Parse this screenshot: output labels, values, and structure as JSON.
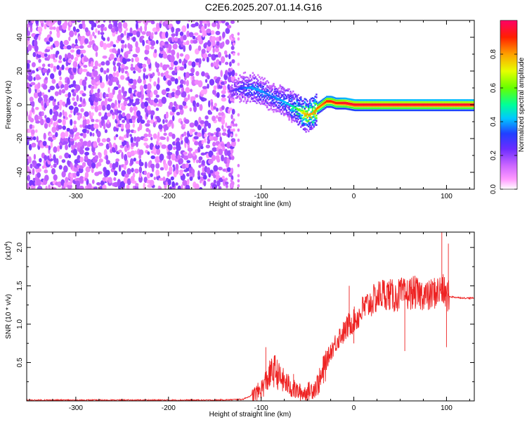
{
  "title": "C2E6.2025.207.01.14.G16",
  "chart_data": [
    {
      "type": "heatmap",
      "name": "spectrogram",
      "xlabel": "Height of straight line (km)",
      "ylabel": "Frequency (Hz)",
      "xlim": [
        -353,
        130
      ],
      "ylim": [
        -50,
        50
      ],
      "xticks": [
        -300,
        -200,
        -100,
        0,
        100
      ],
      "yticks": [
        -40,
        -20,
        0,
        20,
        40
      ],
      "colorbar": {
        "label": "Normalized spectral amplitude",
        "range": [
          0,
          1
        ],
        "ticks": [
          "0.0",
          "0.2",
          "0.4",
          "0.6",
          "0.8"
        ],
        "tick_values": [
          0,
          0.2,
          0.4,
          0.6,
          0.8
        ],
        "colors": [
          "#ffffff",
          "#ff66ff",
          "#8a2be2",
          "#3030ff",
          "#00ffff",
          "#00ff66",
          "#80ff00",
          "#ffff00",
          "#ff8000",
          "#ff0000",
          "#ff0066"
        ]
      },
      "noise_region": {
        "x_range": [
          -353,
          -130
        ],
        "amplitude": 0.2
      },
      "signal_trace": {
        "x": [
          -135,
          -120,
          -110,
          -100,
          -90,
          -80,
          -70,
          -60,
          -55,
          -50,
          -45,
          -40,
          -35,
          -30,
          -25,
          -20,
          -10,
          0,
          20,
          50,
          80,
          100,
          130
        ],
        "freq": [
          8,
          10,
          10,
          8,
          5,
          3,
          0,
          -3,
          -5,
          -6,
          -5,
          -2,
          0,
          2,
          2,
          1,
          1,
          0,
          0,
          0,
          0,
          0,
          0
        ],
        "amplitude": [
          0.2,
          0.35,
          0.4,
          0.4,
          0.35,
          0.4,
          0.45,
          0.6,
          0.75,
          0.8,
          0.8,
          0.85,
          0.85,
          0.9,
          0.9,
          0.9,
          0.95,
          0.95,
          0.95,
          0.95,
          0.95,
          0.95,
          0.95
        ]
      }
    },
    {
      "type": "line",
      "name": "snr",
      "xlabel": "Height of straight line (km)",
      "ylabel": "SNR (10 * v/v)",
      "yscale_label": "(x10",
      "yscale_exp": "4",
      "xlim": [
        -353,
        130
      ],
      "ylim": [
        0,
        2.2
      ],
      "xticks": [
        -300,
        -200,
        -100,
        0,
        100
      ],
      "yticks": [
        0.5,
        1.0,
        1.5,
        2.0
      ],
      "ytick_labels": [
        "0.5",
        "1.0",
        "1.5",
        "2.0"
      ],
      "line_color": "#ee2222",
      "series": [
        {
          "x": [
            -353,
            -300,
            -250,
            -200,
            -150,
            -120,
            -105,
            -100,
            -95,
            -90,
            -85,
            -80,
            -75,
            -70,
            -65,
            -60,
            -55,
            -50,
            -45,
            -40,
            -35,
            -30,
            -25,
            -20,
            -15,
            -10,
            -5,
            0,
            5,
            10,
            15,
            20,
            25,
            30,
            35,
            40,
            45,
            50,
            55,
            60,
            65,
            70,
            75,
            80,
            85,
            90,
            95,
            100,
            103,
            110,
            120,
            130
          ],
          "y": [
            0.01,
            0.01,
            0.01,
            0.01,
            0.01,
            0.02,
            0.1,
            0.15,
            0.25,
            0.35,
            0.4,
            0.3,
            0.25,
            0.2,
            0.15,
            0.12,
            0.1,
            0.12,
            0.15,
            0.2,
            0.3,
            0.5,
            0.65,
            0.75,
            0.85,
            0.9,
            1.0,
            1.05,
            1.1,
            1.2,
            1.25,
            1.3,
            1.35,
            1.4,
            1.4,
            1.38,
            1.35,
            1.4,
            1.38,
            1.4,
            1.42,
            1.38,
            1.4,
            1.35,
            1.4,
            1.42,
            1.45,
            1.38,
            1.36,
            1.35,
            1.34,
            1.34
          ]
        }
      ],
      "spikes": [
        {
          "x": -95,
          "y": 0.7
        },
        {
          "x": -65,
          "y": 0.35
        },
        {
          "x": -5,
          "y": 1.5
        },
        {
          "x": 0,
          "y": 0.75
        },
        {
          "x": 55,
          "y": 0.65
        },
        {
          "x": 95,
          "y": 2.2
        },
        {
          "x": 100,
          "y": 0.7
        },
        {
          "x": 102,
          "y": 2.05
        }
      ]
    }
  ]
}
